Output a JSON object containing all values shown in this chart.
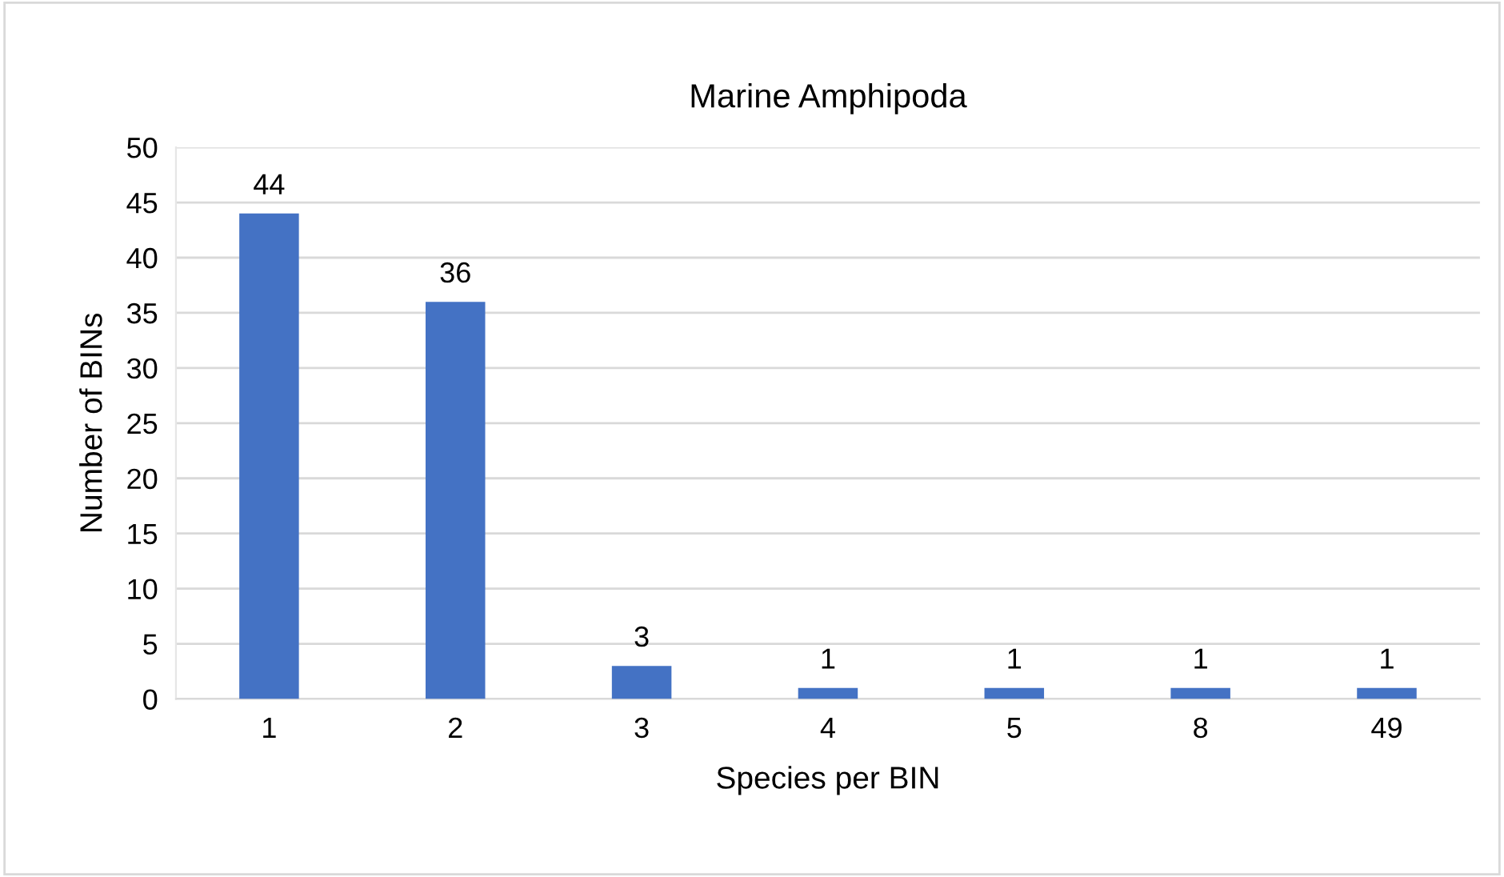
{
  "chart_data": {
    "type": "bar",
    "title": "Marine Amphipoda",
    "xlabel": "Species per BIN",
    "ylabel": "Number of BINs",
    "categories": [
      "1",
      "2",
      "3",
      "4",
      "5",
      "8",
      "49"
    ],
    "values": [
      44,
      36,
      3,
      1,
      1,
      1,
      1
    ],
    "color": "#4472c4",
    "ylim": [
      0,
      50
    ],
    "yticks": [
      0,
      5,
      10,
      15,
      20,
      25,
      30,
      35,
      40,
      45,
      50
    ],
    "grid": "y",
    "data_labels": true
  }
}
